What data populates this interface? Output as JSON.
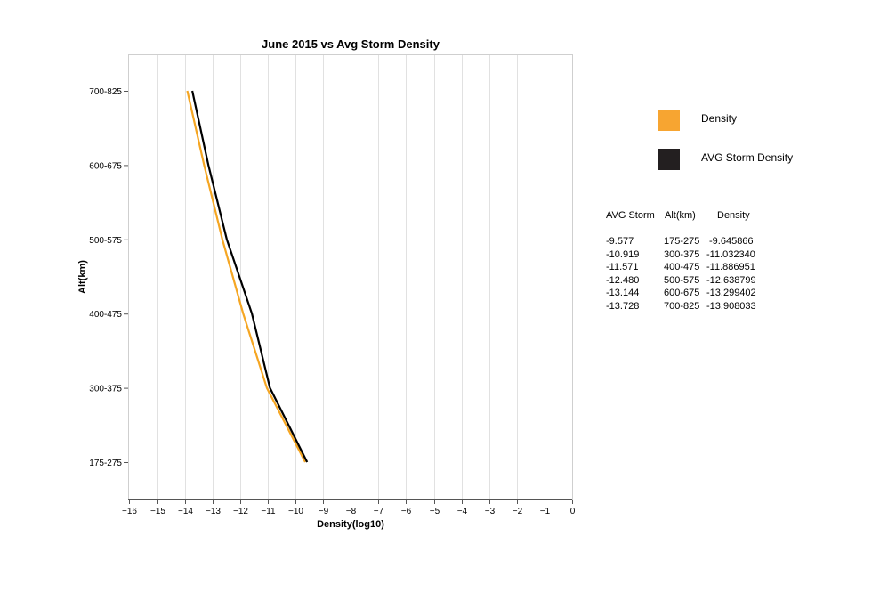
{
  "chart_data": {
    "type": "line",
    "title": "June 2015 vs Avg Storm Density",
    "xlabel": "Density(log10)",
    "ylabel": "Alt(km)",
    "xlim": [
      -16,
      0
    ],
    "x_ticks": [
      "−16",
      "−15",
      "−14",
      "−13",
      "−12",
      "−11",
      "−10",
      "−9",
      "−8",
      "−7",
      "−6",
      "−5",
      "−4",
      "−3",
      "−2",
      "−1",
      "0"
    ],
    "categories": [
      "175-275",
      "300-375",
      "400-475",
      "500-575",
      "600-675",
      "700-825"
    ],
    "grid": "vertical",
    "series": [
      {
        "name": "Density",
        "color": "#f5a623",
        "values": [
          -9.645866,
          -11.03234,
          -11.886951,
          -12.638799,
          -13.299402,
          -13.908033
        ]
      },
      {
        "name": "AVG Storm Density",
        "color": "#000000",
        "values": [
          -9.577,
          -10.919,
          -11.571,
          -12.48,
          -13.144,
          -13.728
        ]
      }
    ]
  },
  "legend": {
    "items": [
      {
        "label": "Density",
        "color": "#f7a531"
      },
      {
        "label": "AVG Storm Density",
        "color": "#231f20"
      }
    ]
  },
  "table": {
    "headers": [
      "AVG Storm",
      "Alt(km)",
      "Density"
    ],
    "rows": [
      [
        "-9.577",
        "175-275",
        "-9.645866"
      ],
      [
        "-10.919",
        "300-375",
        "-11.032340"
      ],
      [
        "-11.571",
        "400-475",
        "-11.886951"
      ],
      [
        "-12.480",
        "500-575",
        "-12.638799"
      ],
      [
        "-13.144",
        "600-675",
        "-13.299402"
      ],
      [
        "-13.728",
        "700-825",
        "-13.908033"
      ]
    ]
  }
}
